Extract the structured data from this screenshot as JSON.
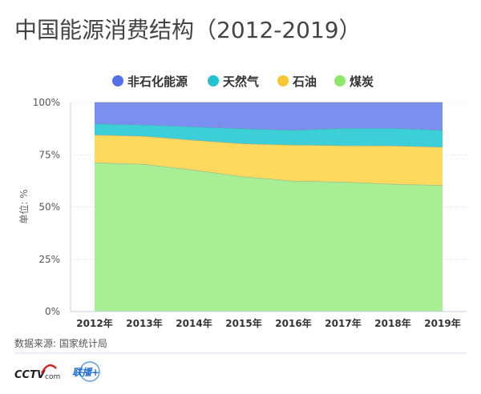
{
  "chart_data": {
    "type": "area",
    "stacked": true,
    "title": "中国能源消费结构（2012-2019）",
    "ylabel": "单位: %",
    "xlabel": "",
    "ylim": [
      0,
      100
    ],
    "yticks": [
      "0%",
      "25%",
      "50%",
      "75%",
      "100%"
    ],
    "categories": [
      "2012年",
      "2013年",
      "2014年",
      "2015年",
      "2016年",
      "2017年",
      "2018年",
      "2019年"
    ],
    "legend_position": "top",
    "grid": true,
    "series": [
      {
        "name": "煤炭",
        "color": "#a8ee94",
        "legend_color": "#8ee66a",
        "values": [
          71.3,
          70.5,
          67.7,
          64.5,
          62.5,
          62.0,
          61.0,
          60.4
        ]
      },
      {
        "name": "石油",
        "color": "#fdd95e",
        "legend_color": "#f9c631",
        "values": [
          13.2,
          13.4,
          14.3,
          15.8,
          17.2,
          17.4,
          18.3,
          18.3
        ]
      },
      {
        "name": "天然气",
        "color": "#3ccfd8",
        "legend_color": "#22c3d0",
        "values": [
          5.4,
          5.4,
          6.4,
          7.2,
          7.1,
          8.3,
          8.4,
          8.1
        ]
      },
      {
        "name": "非石化能源",
        "color": "#7b8ff0",
        "legend_color": "#5470e8",
        "values": [
          10.1,
          10.7,
          11.6,
          12.5,
          13.2,
          12.3,
          12.3,
          13.2
        ]
      }
    ],
    "legend_order": [
      "非石化能源",
      "天然气",
      "石油",
      "煤炭"
    ]
  },
  "footer": {
    "source": "数据来源: 国家统计局",
    "logos": [
      "CCTV.com 央视网",
      "联播+"
    ]
  }
}
